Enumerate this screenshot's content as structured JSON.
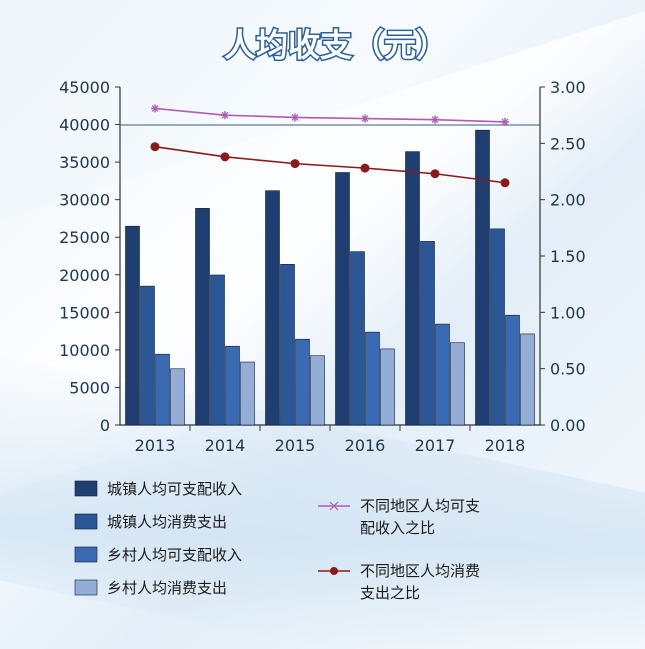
{
  "chart_data": {
    "type": "bar",
    "title": "人均收支（元）",
    "categories": [
      "2013",
      "2014",
      "2015",
      "2016",
      "2017",
      "2018"
    ],
    "ylim": [
      0,
      45000
    ],
    "y_ticks": [
      "45000",
      "40000",
      "35000",
      "30000",
      "25000",
      "20000",
      "15000",
      "10000",
      "5000",
      "0"
    ],
    "y2lim": [
      0,
      3
    ],
    "y2_ticks": [
      "3.00",
      "2.50",
      "2.00",
      "1.50",
      "1.00",
      "0.50",
      "0.00"
    ],
    "series": [
      {
        "name": "城镇人均可支配收入",
        "axis": "left",
        "color": "#1f3f73",
        "values": [
          26467,
          28844,
          31195,
          33616,
          36396,
          39251
        ]
      },
      {
        "name": "城镇人均消费支出",
        "axis": "left",
        "color": "#2b5797",
        "values": [
          18488,
          19968,
          21392,
          23079,
          24445,
          26112
        ]
      },
      {
        "name": "乡村人均可支配收入",
        "axis": "left",
        "color": "#3a6ab4",
        "values": [
          9430,
          10489,
          11422,
          12363,
          13432,
          14617
        ]
      },
      {
        "name": "乡村人均消费支出",
        "axis": "left",
        "color": "#93add6",
        "values": [
          7485,
          8383,
          9223,
          10130,
          10955,
          12124
        ]
      }
    ],
    "lines": [
      {
        "name": "不同地区人均可支配收入之比",
        "axis": "right",
        "color": "#b05ab8",
        "marker": "star",
        "values": [
          2.81,
          2.75,
          2.73,
          2.72,
          2.71,
          2.69
        ]
      },
      {
        "name": "不同地区人均消费支出之比",
        "axis": "right",
        "color": "#8b1a1a",
        "marker": "circle",
        "values": [
          2.47,
          2.38,
          2.32,
          2.28,
          2.23,
          2.15
        ]
      }
    ],
    "legend": {
      "bars": [
        "城镇人均可支配收入",
        "城镇人均消费支出",
        "乡村人均可支配收入",
        "乡村人均消费支出"
      ],
      "lines": [
        [
          "不同地区人均可支配",
          "收入之比"
        ],
        [
          "不同地区人均消费",
          "支出之比"
        ]
      ]
    },
    "legend_line1": [
      "不同地区人均可支",
      "配收入之比"
    ],
    "legend_line2": [
      "不同地区人均消费",
      "支出之比"
    ],
    "grid": false,
    "legend_position": "bottom"
  }
}
